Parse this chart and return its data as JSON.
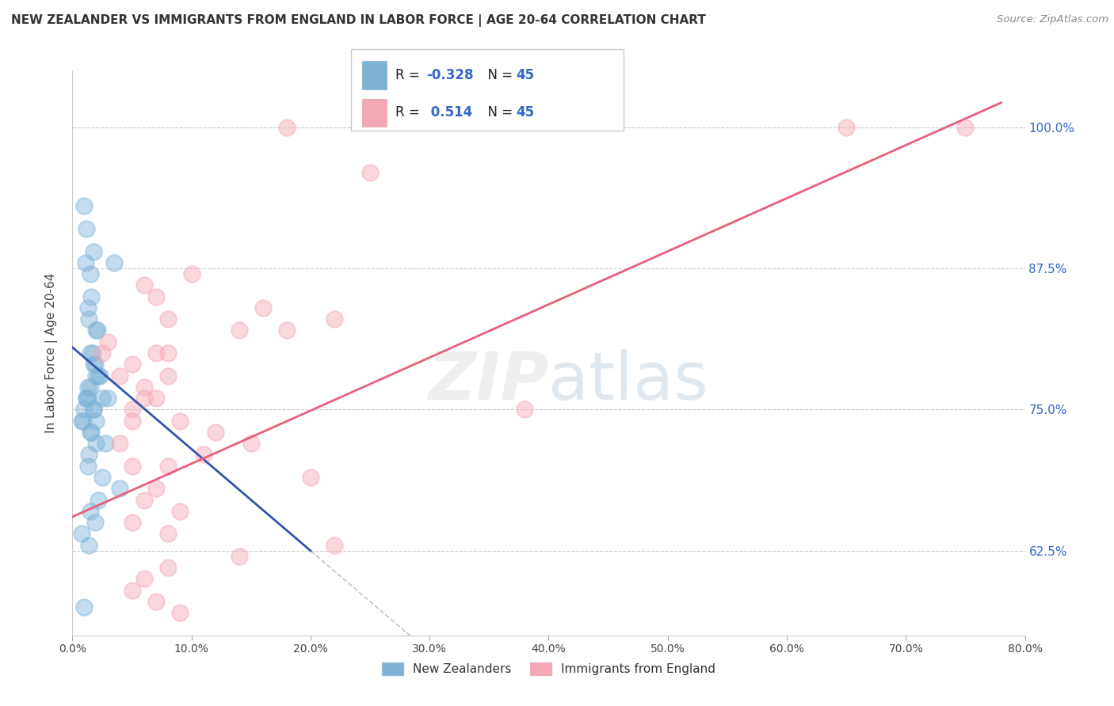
{
  "title": "NEW ZEALANDER VS IMMIGRANTS FROM ENGLAND IN LABOR FORCE | AGE 20-64 CORRELATION CHART",
  "source": "Source: ZipAtlas.com",
  "ylabel": "In Labor Force | Age 20-64",
  "x_tick_values": [
    0.0,
    10.0,
    20.0,
    30.0,
    40.0,
    50.0,
    60.0,
    70.0,
    80.0
  ],
  "y_tick_values": [
    62.5,
    75.0,
    87.5,
    100.0
  ],
  "xlim": [
    0.0,
    80.0
  ],
  "ylim": [
    55.0,
    105.0
  ],
  "legend_label1": "New Zealanders",
  "legend_label2": "Immigrants from England",
  "blue_color": "#7EB3D8",
  "pink_color": "#F4A7B5",
  "blue_line_color": "#3355AA",
  "pink_line_color": "#E8607A",
  "blue_R": -0.328,
  "pink_R": 0.514,
  "blue_N": 45,
  "pink_N": 45,
  "blue_scatter_x": [
    1.2,
    1.5,
    1.0,
    1.8,
    1.3,
    2.0,
    1.6,
    1.1,
    2.2,
    1.4,
    1.7,
    1.9,
    2.5,
    1.3,
    1.0,
    0.8,
    1.5,
    2.0,
    1.2,
    1.8,
    2.3,
    3.5,
    1.5,
    1.2,
    0.9,
    1.6,
    2.8,
    1.4,
    1.3,
    2.5,
    4.0,
    2.2,
    1.5,
    1.9,
    0.8,
    1.4,
    1.8,
    1.3,
    2.0,
    3.0,
    1.0,
    1.8,
    2.0,
    1.5,
    2.1
  ],
  "blue_scatter_y": [
    91.0,
    87.0,
    93.0,
    89.0,
    84.0,
    82.0,
    85.0,
    88.0,
    78.0,
    83.0,
    80.0,
    79.0,
    76.0,
    77.0,
    75.0,
    74.0,
    73.0,
    72.0,
    76.0,
    75.0,
    78.0,
    88.0,
    77.0,
    76.0,
    74.0,
    73.0,
    72.0,
    71.0,
    70.0,
    69.0,
    68.0,
    67.0,
    66.0,
    65.0,
    64.0,
    63.0,
    75.0,
    76.0,
    74.0,
    76.0,
    57.5,
    79.0,
    78.0,
    80.0,
    82.0
  ],
  "pink_scatter_x": [
    2.5,
    6.0,
    7.0,
    8.0,
    10.0,
    14.0,
    18.0,
    16.0,
    22.0,
    4.0,
    5.0,
    8.0,
    3.0,
    6.0,
    7.0,
    5.0,
    9.0,
    12.0,
    15.0,
    11.0,
    8.0,
    20.0,
    25.0,
    18.0,
    7.0,
    6.0,
    9.0,
    5.0,
    8.0,
    22.0,
    14.0,
    8.0,
    6.0,
    5.0,
    7.0,
    9.0,
    8.0,
    6.0,
    5.0,
    4.0,
    5.0,
    38.0,
    65.0,
    75.0,
    7.0
  ],
  "pink_scatter_y": [
    80.0,
    86.0,
    85.0,
    83.0,
    87.0,
    82.0,
    82.0,
    84.0,
    83.0,
    78.0,
    79.0,
    80.0,
    81.0,
    77.0,
    76.0,
    75.0,
    74.0,
    73.0,
    72.0,
    71.0,
    70.0,
    69.0,
    96.0,
    100.0,
    68.0,
    67.0,
    66.0,
    65.0,
    64.0,
    63.0,
    62.0,
    61.0,
    60.0,
    59.0,
    58.0,
    57.0,
    78.0,
    76.0,
    74.0,
    72.0,
    70.0,
    75.0,
    100.0,
    100.0,
    80.0
  ],
  "blue_line_x": [
    0.0,
    20.0
  ],
  "blue_line_y_intercept": 80.5,
  "blue_line_slope": -0.9,
  "pink_line_x": [
    0.0,
    78.0
  ],
  "pink_line_y_intercept": 65.5,
  "pink_line_slope": 0.47,
  "dashed_line_x": [
    3.5,
    50.0
  ],
  "dashed_line_y_intercept": 80.5,
  "dashed_line_slope": -0.9
}
